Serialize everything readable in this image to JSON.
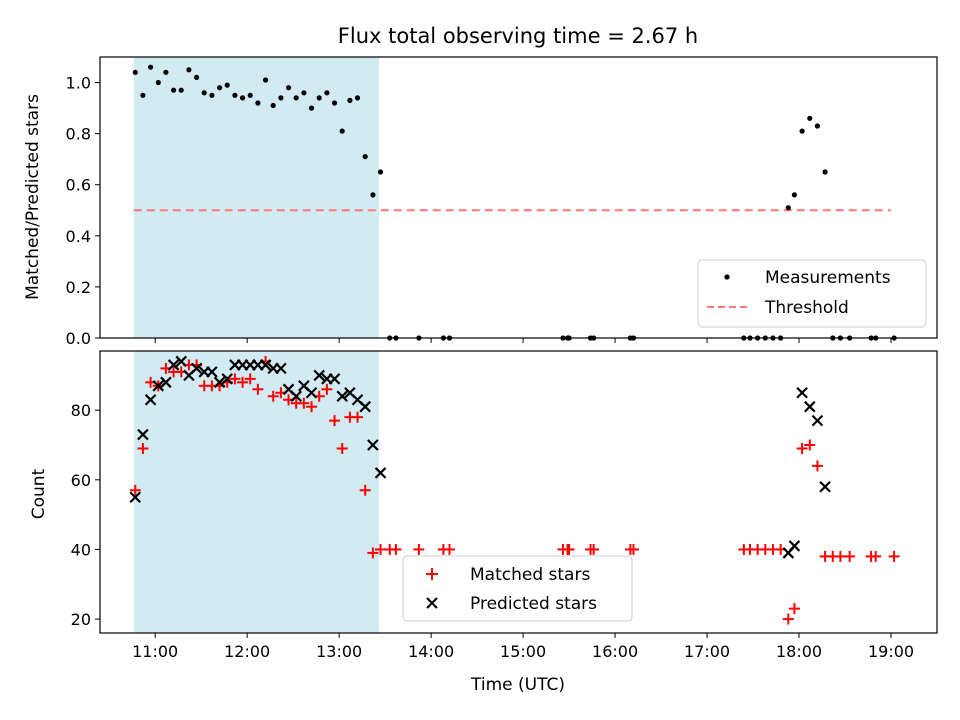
{
  "title": "Flux total observing time = 2.67 h",
  "chart_data": [
    {
      "type": "scatter",
      "ylabel": "Matched/Predicted stars",
      "ylim": [
        0,
        1.1
      ],
      "yticks": [
        "0.0",
        "0.2",
        "0.4",
        "0.6",
        "0.8",
        "1.0"
      ],
      "shaded_region": {
        "from": "10:46",
        "to": "13:26",
        "color": "#add8e6"
      },
      "threshold": {
        "name": "Threshold",
        "value": 0.5,
        "from": "10:46",
        "to": "19:00",
        "color": "#ff7777"
      },
      "legend": {
        "position": "lower-right",
        "entries": [
          "Measurements",
          "Threshold"
        ]
      },
      "series": [
        {
          "name": "Measurements",
          "marker": "dot",
          "color": "#000000",
          "points": [
            [
              "10:47",
              1.04
            ],
            [
              "10:52",
              0.95
            ],
            [
              "10:57",
              1.06
            ],
            [
              "11:02",
              1.0
            ],
            [
              "11:07",
              1.04
            ],
            [
              "11:12",
              0.97
            ],
            [
              "11:17",
              0.97
            ],
            [
              "11:22",
              1.05
            ],
            [
              "11:27",
              1.02
            ],
            [
              "11:32",
              0.96
            ],
            [
              "11:37",
              0.95
            ],
            [
              "11:42",
              0.98
            ],
            [
              "11:47",
              0.99
            ],
            [
              "11:52",
              0.95
            ],
            [
              "11:57",
              0.94
            ],
            [
              "12:02",
              0.95
            ],
            [
              "12:07",
              0.92
            ],
            [
              "12:12",
              1.01
            ],
            [
              "12:17",
              0.91
            ],
            [
              "12:22",
              0.94
            ],
            [
              "12:27",
              0.98
            ],
            [
              "12:32",
              0.94
            ],
            [
              "12:37",
              0.96
            ],
            [
              "12:42",
              0.9
            ],
            [
              "12:47",
              0.94
            ],
            [
              "12:52",
              0.96
            ],
            [
              "12:57",
              0.92
            ],
            [
              "13:02",
              0.81
            ],
            [
              "13:07",
              0.93
            ],
            [
              "13:12",
              0.94
            ],
            [
              "13:17",
              0.71
            ],
            [
              "13:22",
              0.56
            ],
            [
              "13:27",
              0.65
            ],
            [
              "13:33",
              0.0
            ],
            [
              "13:37",
              0.0
            ],
            [
              "13:52",
              0.0
            ],
            [
              "14:08",
              0.0
            ],
            [
              "14:12",
              0.0
            ],
            [
              "15:26",
              0.0
            ],
            [
              "15:29",
              0.0
            ],
            [
              "15:30",
              0.0
            ],
            [
              "15:44",
              0.0
            ],
            [
              "15:46",
              0.0
            ],
            [
              "16:10",
              0.0
            ],
            [
              "16:12",
              0.0
            ],
            [
              "17:24",
              0.0
            ],
            [
              "17:28",
              0.0
            ],
            [
              "17:33",
              0.0
            ],
            [
              "17:38",
              0.0
            ],
            [
              "17:43",
              0.0
            ],
            [
              "17:48",
              0.0
            ],
            [
              "17:53",
              0.51
            ],
            [
              "17:57",
              0.56
            ],
            [
              "18:02",
              0.81
            ],
            [
              "18:07",
              0.86
            ],
            [
              "18:12",
              0.83
            ],
            [
              "18:17",
              0.65
            ],
            [
              "18:22",
              0.0
            ],
            [
              "18:27",
              0.0
            ],
            [
              "18:33",
              0.0
            ],
            [
              "18:47",
              0.0
            ],
            [
              "18:50",
              0.0
            ],
            [
              "19:02",
              0.0
            ]
          ]
        }
      ]
    },
    {
      "type": "scatter",
      "xlabel": "Time (UTC)",
      "ylabel": "Count",
      "ylim": [
        16,
        97
      ],
      "yticks": [
        "20",
        "40",
        "60",
        "80"
      ],
      "xlim": [
        "10:24",
        "19:30"
      ],
      "xticks": [
        "11:00",
        "12:00",
        "13:00",
        "14:00",
        "15:00",
        "16:00",
        "17:00",
        "18:00",
        "19:00"
      ],
      "shaded_region": {
        "from": "10:46",
        "to": "13:26",
        "color": "#add8e6"
      },
      "legend": {
        "position": "lower-center",
        "entries": [
          "Matched stars",
          "Predicted stars"
        ]
      },
      "series": [
        {
          "name": "Matched stars",
          "marker": "plus",
          "color": "#ff0000",
          "points": [
            [
              "10:47",
              57
            ],
            [
              "10:52",
              69
            ],
            [
              "10:57",
              88
            ],
            [
              "11:02",
              87
            ],
            [
              "11:07",
              92
            ],
            [
              "11:12",
              91
            ],
            [
              "11:17",
              91
            ],
            [
              "11:22",
              93
            ],
            [
              "11:27",
              93
            ],
            [
              "11:32",
              87
            ],
            [
              "11:37",
              87
            ],
            [
              "11:42",
              87
            ],
            [
              "11:47",
              88
            ],
            [
              "11:52",
              89
            ],
            [
              "11:57",
              88
            ],
            [
              "12:02",
              89
            ],
            [
              "12:07",
              86
            ],
            [
              "12:12",
              94
            ],
            [
              "12:17",
              84
            ],
            [
              "12:22",
              85
            ],
            [
              "12:27",
              83
            ],
            [
              "12:32",
              82
            ],
            [
              "12:37",
              82
            ],
            [
              "12:42",
              81
            ],
            [
              "12:47",
              84
            ],
            [
              "12:52",
              86
            ],
            [
              "12:57",
              77
            ],
            [
              "13:02",
              69
            ],
            [
              "13:07",
              78
            ],
            [
              "13:12",
              78
            ],
            [
              "13:17",
              57
            ],
            [
              "13:22",
              39
            ],
            [
              "13:27",
              40
            ],
            [
              "13:33",
              40
            ],
            [
              "13:37",
              40
            ],
            [
              "13:52",
              40
            ],
            [
              "14:08",
              40
            ],
            [
              "14:12",
              40
            ],
            [
              "15:26",
              40
            ],
            [
              "15:29",
              40
            ],
            [
              "15:30",
              40
            ],
            [
              "15:44",
              40
            ],
            [
              "15:46",
              40
            ],
            [
              "16:10",
              40
            ],
            [
              "16:12",
              40
            ],
            [
              "17:24",
              40
            ],
            [
              "17:28",
              40
            ],
            [
              "17:33",
              40
            ],
            [
              "17:38",
              40
            ],
            [
              "17:43",
              40
            ],
            [
              "17:48",
              40
            ],
            [
              "17:53",
              20
            ],
            [
              "17:57",
              23
            ],
            [
              "18:02",
              69
            ],
            [
              "18:07",
              70
            ],
            [
              "18:12",
              64
            ],
            [
              "18:17",
              38
            ],
            [
              "18:22",
              38
            ],
            [
              "18:27",
              38
            ],
            [
              "18:33",
              38
            ],
            [
              "18:47",
              38
            ],
            [
              "18:50",
              38
            ],
            [
              "19:02",
              38
            ]
          ]
        },
        {
          "name": "Predicted stars",
          "marker": "x",
          "color": "#000000",
          "points": [
            [
              "10:47",
              55
            ],
            [
              "10:52",
              73
            ],
            [
              "10:57",
              83
            ],
            [
              "11:02",
              87
            ],
            [
              "11:07",
              88
            ],
            [
              "11:12",
              93
            ],
            [
              "11:17",
              94
            ],
            [
              "11:22",
              90
            ],
            [
              "11:27",
              92
            ],
            [
              "11:32",
              91
            ],
            [
              "11:37",
              91
            ],
            [
              "11:42",
              88
            ],
            [
              "11:47",
              89
            ],
            [
              "11:52",
              93
            ],
            [
              "11:57",
              93
            ],
            [
              "12:02",
              93
            ],
            [
              "12:07",
              93
            ],
            [
              "12:12",
              93
            ],
            [
              "12:17",
              92
            ],
            [
              "12:22",
              92
            ],
            [
              "12:27",
              86
            ],
            [
              "12:32",
              84
            ],
            [
              "12:37",
              87
            ],
            [
              "12:42",
              85
            ],
            [
              "12:47",
              90
            ],
            [
              "12:52",
              89
            ],
            [
              "12:57",
              89
            ],
            [
              "13:02",
              84
            ],
            [
              "13:07",
              85
            ],
            [
              "13:12",
              83
            ],
            [
              "13:17",
              81
            ],
            [
              "13:22",
              70
            ],
            [
              "13:27",
              62
            ],
            [
              "17:53",
              39
            ],
            [
              "17:57",
              41
            ],
            [
              "18:02",
              85
            ],
            [
              "18:07",
              81
            ],
            [
              "18:12",
              77
            ],
            [
              "18:17",
              58
            ]
          ]
        }
      ]
    }
  ]
}
